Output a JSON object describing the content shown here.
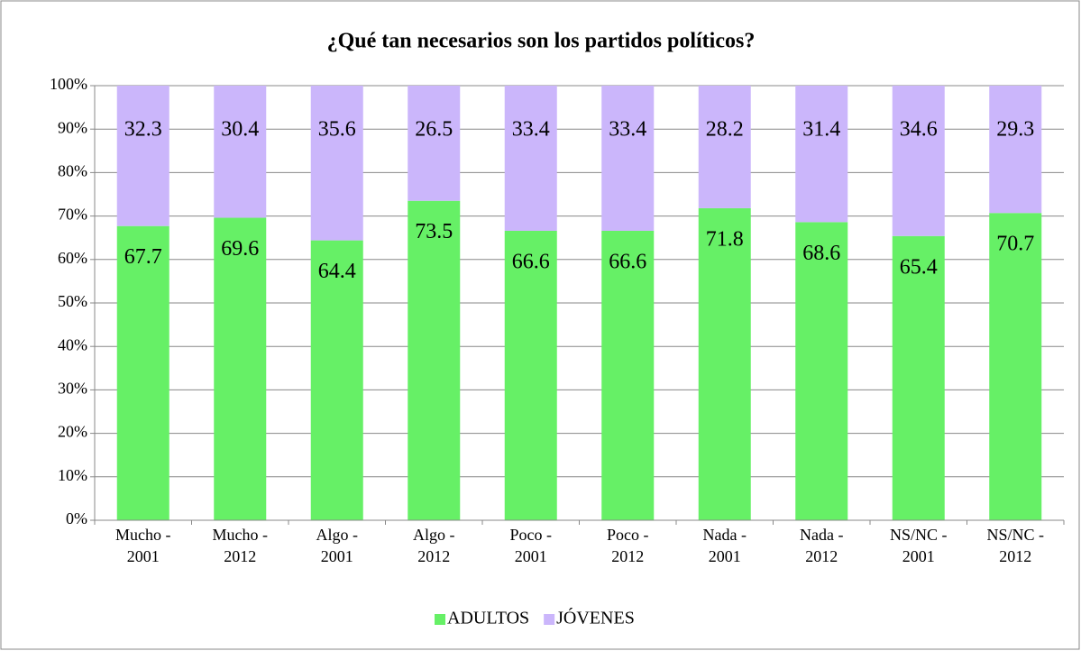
{
  "chart_data": {
    "type": "stacked_bar",
    "title": "¿Qué tan necesarios son los partidos políticos?",
    "categories": [
      "Mucho - 2001",
      "Mucho - 2012",
      "Algo - 2001",
      "Algo - 2012",
      "Poco - 2001",
      "Poco - 2012",
      "Nada - 2001",
      "Nada - 2012",
      "NS/NC - 2001",
      "NS/NC - 2012"
    ],
    "series": [
      {
        "name": "ADULTOS",
        "color": "#66f066",
        "values": [
          67.7,
          69.6,
          64.4,
          73.5,
          66.6,
          66.6,
          71.8,
          68.6,
          65.4,
          70.7
        ]
      },
      {
        "name": "JÓVENES",
        "color": "#cbb6fb",
        "values": [
          32.3,
          30.4,
          35.6,
          26.5,
          33.4,
          33.4,
          28.2,
          31.4,
          34.6,
          29.3
        ]
      }
    ],
    "ylim": [
      0,
      100
    ],
    "yticks": [
      {
        "value": 0,
        "label": "0%"
      },
      {
        "value": 10,
        "label": "10%"
      },
      {
        "value": 20,
        "label": "20%"
      },
      {
        "value": 30,
        "label": "30%"
      },
      {
        "value": 40,
        "label": "40%"
      },
      {
        "value": 50,
        "label": "50%"
      },
      {
        "value": 60,
        "label": "60%"
      },
      {
        "value": 70,
        "label": "70%"
      },
      {
        "value": 80,
        "label": "80%"
      },
      {
        "value": 90,
        "label": "90%"
      },
      {
        "value": 100,
        "label": "100%"
      }
    ],
    "grid": true,
    "legend": "bottom"
  }
}
